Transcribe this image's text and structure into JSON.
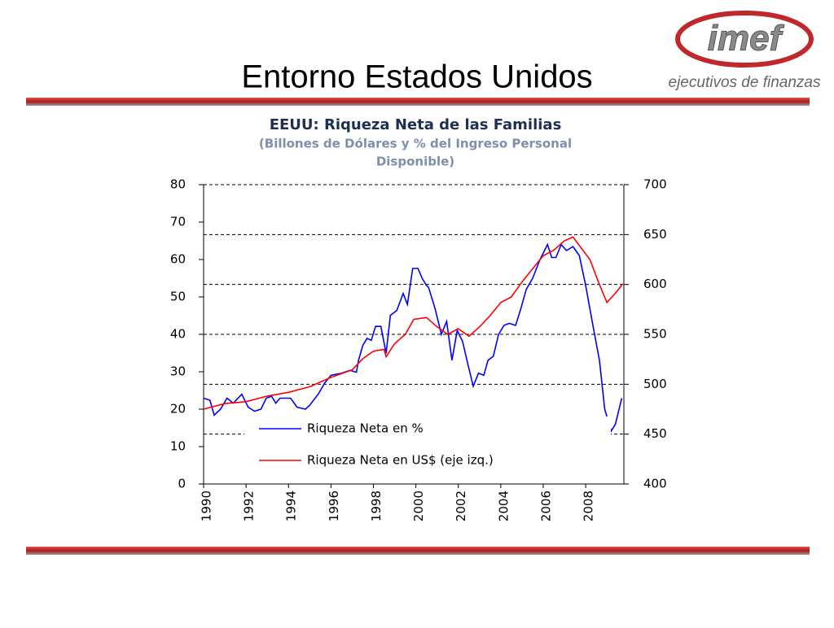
{
  "header": {
    "title": "Entorno Estados Unidos"
  },
  "logo": {
    "name": "imef",
    "tagline": "ejecutivos de finanzas"
  },
  "chart_data": {
    "type": "line",
    "title": "EEUU: Riqueza Neta de las Familias",
    "subtitle": [
      "(Billones de Dólares y % del Ingreso Personal",
      "Disponible)"
    ],
    "xlim": [
      1990,
      2009.8
    ],
    "xticks": [
      1990,
      1992,
      1994,
      1996,
      1998,
      2000,
      2002,
      2004,
      2006,
      2008
    ],
    "ylim": [
      0,
      80
    ],
    "yticks": [
      0,
      10,
      20,
      30,
      40,
      50,
      60,
      70,
      80
    ],
    "y2lim": [
      400,
      700
    ],
    "y2ticks": [
      400,
      450,
      500,
      550,
      600,
      650,
      700
    ],
    "grid": true,
    "series": [
      {
        "name": "Riqueza Neta en %",
        "color": "#0000ff",
        "axis": "y2",
        "x": [
          1990.0,
          1990.3,
          1990.5,
          1990.8,
          1991.1,
          1991.4,
          1991.8,
          1992.1,
          1992.4,
          1992.7,
          1992.95,
          1993.2,
          1993.4,
          1993.6,
          1994.1,
          1994.4,
          1994.8,
          1995.0,
          1995.4,
          1995.7,
          1996.0,
          1996.5,
          1996.9,
          1997.2,
          1997.3,
          1997.5,
          1997.7,
          1997.9,
          1998.1,
          1998.35,
          1998.6,
          1998.8,
          1999.1,
          1999.4,
          1999.6,
          1999.85,
          2000.1,
          2000.3,
          2000.5,
          2000.6,
          2000.9,
          2001.2,
          2001.45,
          2001.7,
          2001.95,
          2002.2,
          2002.45,
          2002.7,
          2002.95,
          2003.2,
          2003.4,
          2003.65,
          2003.9,
          2004.15,
          2004.4,
          2004.7,
          2004.95,
          2005.2,
          2005.5,
          2005.85,
          2006.2,
          2006.4,
          2006.6,
          2006.85,
          2007.1,
          2007.4,
          2007.7,
          2008.0,
          2008.35,
          2008.65,
          2008.9,
          2009.2,
          2009.4,
          2009.7
        ],
        "values": [
          486,
          484,
          469,
          475,
          486,
          481,
          490,
          477,
          473,
          475,
          486,
          488,
          481,
          486,
          486,
          477,
          475,
          479,
          490,
          501,
          509,
          511,
          514,
          512,
          524,
          539,
          546,
          544,
          558,
          558,
          531,
          569,
          574,
          591,
          580,
          616,
          616,
          606,
          599,
          597,
          576,
          550,
          563,
          524,
          554,
          543,
          520,
          498,
          511,
          509,
          524,
          528,
          550,
          559,
          561,
          559,
          576,
          595,
          606,
          625,
          640,
          627,
          627,
          640,
          634,
          638,
          629,
          599,
          558,
          524,
          475,
          453,
          460,
          486
        ]
      },
      {
        "name": "Riqueza Neta en US$ (eje izq.)",
        "color": "#ff0000",
        "x": [
          1990.0,
          1991.0,
          1992.0,
          1993.0,
          1994.0,
          1995.0,
          1996.0,
          1997.0,
          1997.5,
          1998.0,
          1998.5,
          1998.6,
          1999.0,
          1999.5,
          1999.9,
          2000.5,
          2001.0,
          2001.5,
          2002.0,
          2002.5,
          2003.0,
          2003.5,
          2004.0,
          2004.5,
          2005.0,
          2005.5,
          2006.0,
          2006.5,
          2007.0,
          2007.4,
          2007.8,
          2008.2,
          2008.6,
          2009.0,
          2009.4,
          2009.75
        ],
        "values": [
          20,
          21.5,
          22,
          23.5,
          24.5,
          26,
          28.5,
          30.5,
          33.5,
          35.5,
          36,
          34,
          37.5,
          40,
          44,
          44.5,
          42,
          40,
          41.5,
          39.5,
          42,
          45,
          48.5,
          50,
          54,
          57.5,
          61,
          62.5,
          65,
          66,
          63,
          60,
          54,
          48.5,
          51,
          53.5
        ]
      }
    ]
  }
}
